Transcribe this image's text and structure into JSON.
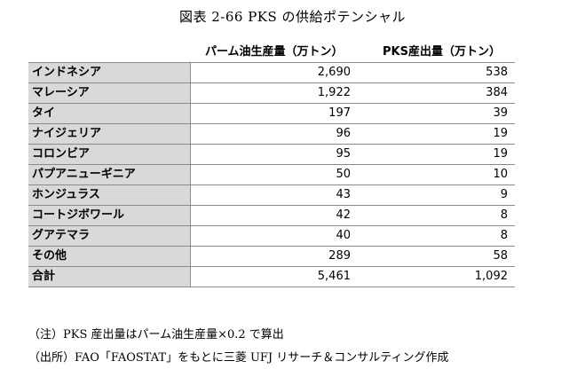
{
  "title": "図表 2-66 PKS の供給ポテンシャル",
  "table": {
    "headers": [
      "",
      "パーム油生産量（万トン）",
      "PKS産出量（万トン）"
    ],
    "rows": [
      {
        "name": "インドネシア",
        "palm": "2,690",
        "pks": "538"
      },
      {
        "name": "マレーシア",
        "palm": "1,922",
        "pks": "384"
      },
      {
        "name": "タイ",
        "palm": "197",
        "pks": "39"
      },
      {
        "name": "ナイジェリア",
        "palm": "96",
        "pks": "19"
      },
      {
        "name": "コロンビア",
        "palm": "95",
        "pks": "19"
      },
      {
        "name": "パプアニューギニア",
        "palm": "50",
        "pks": "10"
      },
      {
        "name": "ホンジュラス",
        "palm": "43",
        "pks": "9"
      },
      {
        "name": "コートジボワール",
        "palm": "42",
        "pks": "8"
      },
      {
        "name": "グアテマラ",
        "palm": "40",
        "pks": "8"
      },
      {
        "name": "その他",
        "palm": "289",
        "pks": "58"
      },
      {
        "name": "合計",
        "palm": "5,461",
        "pks": "1,092"
      }
    ]
  },
  "notes": {
    "note1": "（注）PKS 産出量はパーム油生産量×0.2 で算出",
    "note2": "（出所）FAO「FAOSTAT」をもとに三菱 UFJ リサーチ＆コンサルティング作成"
  }
}
